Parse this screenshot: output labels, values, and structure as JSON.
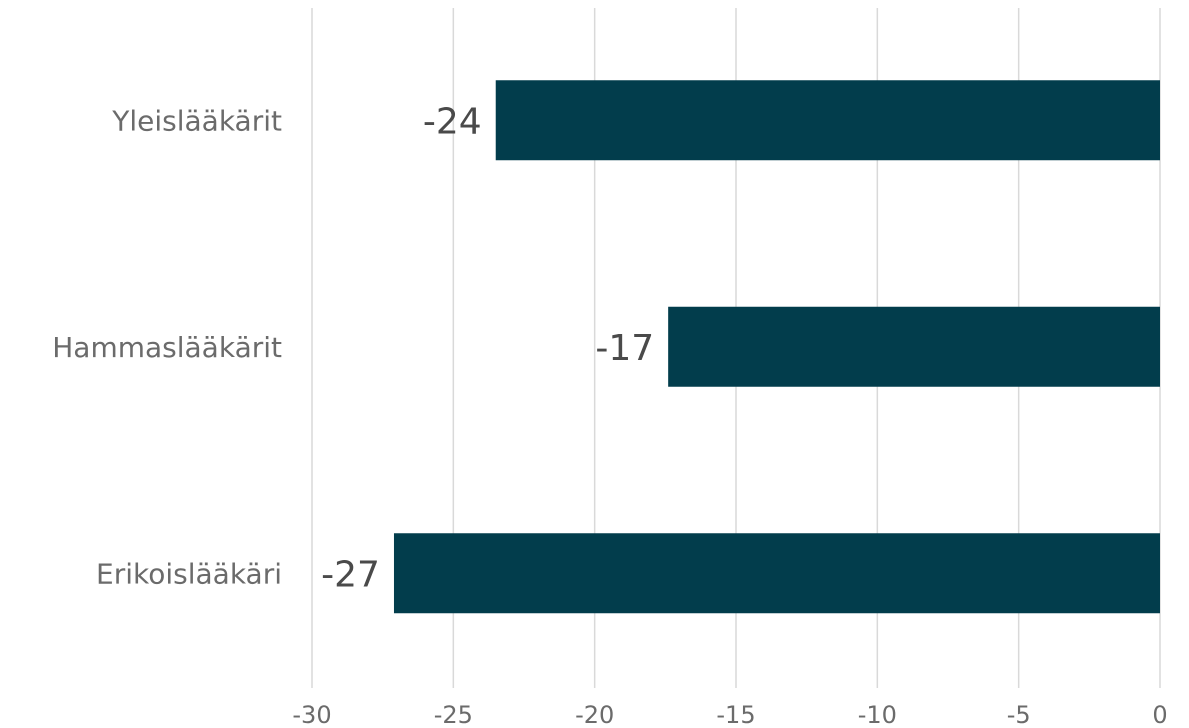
{
  "chart_data": {
    "type": "bar",
    "orientation": "horizontal",
    "categories": [
      "Yleislääkärit",
      "Hammaslääkärit",
      "Erikoislääkäri"
    ],
    "values": [
      -23.5,
      -17.4,
      -27.1
    ],
    "data_labels": [
      "-24",
      "-17",
      "-27"
    ],
    "xlim": [
      -30,
      0
    ],
    "x_ticks": [
      -30,
      -25,
      -20,
      -15,
      -10,
      -5,
      0
    ],
    "x_tick_labels": [
      "-30",
      "-25",
      "-20",
      "-15",
      "-10",
      "-5",
      "0"
    ],
    "bar_color": "#023d4c",
    "grid": "vertical",
    "legend": "none"
  }
}
